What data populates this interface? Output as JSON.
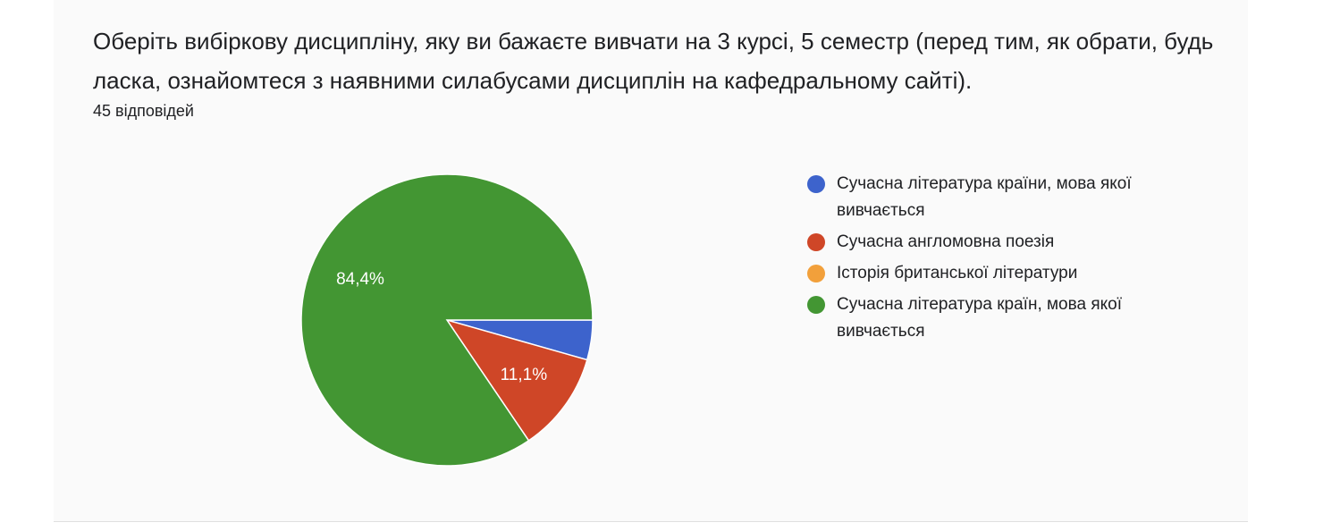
{
  "question": {
    "title": "Оберіть вибіркову дисципліну, яку ви бажаєте вивчати на 3 курсі, 5 семестр  (перед тим, як обрати, будь ласка, ознайомтеся з наявними силабусами дисциплін на кафедральному сайті).",
    "response_count": "45 відповідей"
  },
  "chart_data": {
    "type": "pie",
    "title": "",
    "total_responses": 45,
    "categories": [
      "Сучасна література країни, мова якої вивчається",
      "Сучасна англомовна поезія",
      "Історія британської літератури",
      "Сучасна література країн, мова якої вивчається"
    ],
    "values": [
      4.4,
      11.1,
      0,
      84.4
    ],
    "counts": [
      2,
      5,
      0,
      38
    ],
    "colors": [
      "#3d63cc",
      "#cf4627",
      "#f2a03b",
      "#439633"
    ],
    "data_labels": [
      "",
      "11,1%",
      "",
      "84,4%"
    ],
    "legend_position": "right"
  }
}
